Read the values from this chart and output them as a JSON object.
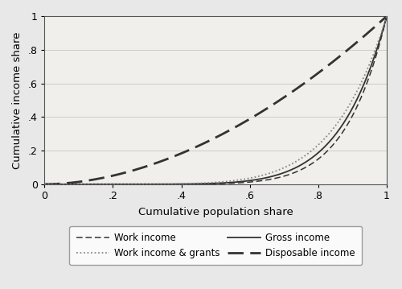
{
  "xlabel": "Cumulative population share",
  "ylabel": "Cumulative income share",
  "xlim": [
    0,
    1
  ],
  "ylim": [
    0,
    1
  ],
  "xticks": [
    0,
    0.2,
    0.4,
    0.6,
    0.8,
    1.0
  ],
  "yticks": [
    0,
    0.2,
    0.4,
    0.6,
    0.8,
    1.0
  ],
  "xticklabels": [
    "0",
    ".2",
    ".4",
    ".6",
    ".8",
    "1"
  ],
  "yticklabels": [
    "0",
    ".2",
    ".4",
    ".6",
    ".8",
    "1"
  ],
  "fig_bg_color": "#e8e8e8",
  "plot_bg_color": "#f0efeb",
  "grid_color": "#cccccc",
  "line_color": "#333333",
  "dotted_color": "#888888",
  "work_income_power": 8.5,
  "work_grants_power": 6.5,
  "gross_income_power": 7.5,
  "disposable_power": 1.85
}
